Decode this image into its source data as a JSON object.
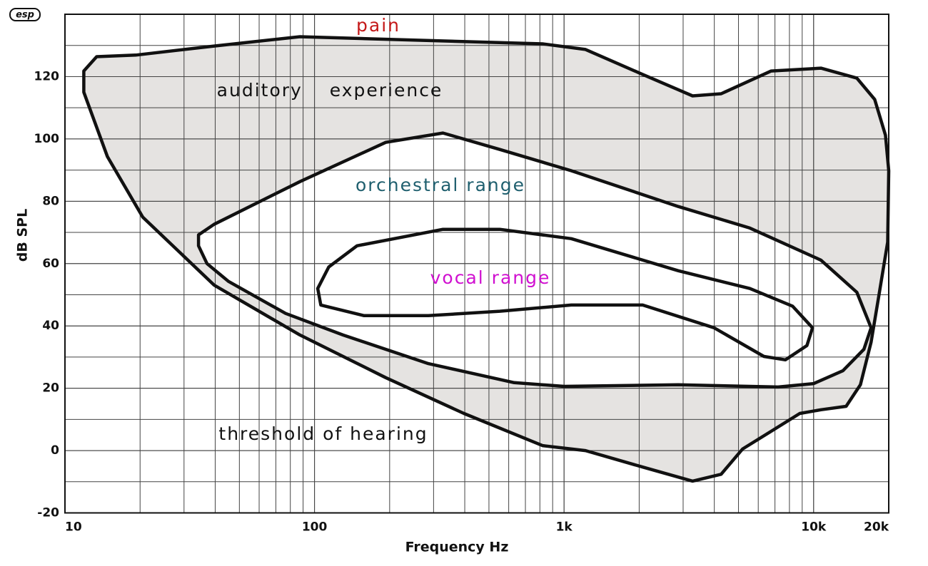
{
  "logo": "esp",
  "chart_data": {
    "type": "region",
    "x_label": "Frequency Hz",
    "y_label": "dB SPL",
    "log_x": true,
    "grid": true,
    "xlim": [
      10,
      20000
    ],
    "ylim": [
      -20,
      140
    ],
    "xticks": [
      10,
      100,
      {
        "value": 1000,
        "label": "1k"
      },
      {
        "value": 10000,
        "label": "10k"
      },
      {
        "value": 20000,
        "label": "20k"
      }
    ],
    "yticks": [
      -20,
      0,
      20,
      40,
      60,
      80,
      100,
      120
    ],
    "series": [
      {
        "name": "auditory experience",
        "color": "#111111",
        "fill": "#e5e3e1",
        "x": [
          11.9,
          13.4,
          19.2,
          39.6,
          87.4,
          169,
          820,
          1219,
          2065,
          3273,
          4260,
          6760,
          10700,
          14900,
          17570,
          19400,
          20000,
          19800,
          18150,
          17000,
          15400,
          13500,
          10700,
          8800,
          6760,
          5190,
          4260,
          3273,
          2065,
          1219,
          820,
          397,
          193,
          87.4,
          39.6,
          20.5,
          14.8,
          11.9
        ],
        "values": [
          121.8,
          126.4,
          126.9,
          129.8,
          132.8,
          132.1,
          130.5,
          128.7,
          120.7,
          113.8,
          114.5,
          121.8,
          122.7,
          119.5,
          112.7,
          101.2,
          89.8,
          66.9,
          48.5,
          34.8,
          21.1,
          14.2,
          13.1,
          11.9,
          6.2,
          0.5,
          -7.6,
          -9.8,
          -5.3,
          0,
          1.6,
          11.9,
          23.4,
          37.1,
          53.1,
          74.9,
          94.3,
          115
        ]
      },
      {
        "name": "orchestral range",
        "color": "#111111",
        "fill": "#ffffff",
        "x": [
          34.3,
          39.6,
          87.4,
          193,
          327,
          553,
          1069,
          2870,
          5550,
          10700,
          14900,
          17000,
          15900,
          13100,
          10000,
          7210,
          2870,
          1000,
          631,
          286,
          130,
          76.6,
          45.2,
          37.1,
          34.3
        ],
        "values": [
          69.2,
          72.6,
          86.3,
          98.9,
          101.9,
          96.6,
          89.8,
          78.3,
          71.4,
          61.1,
          50.8,
          39.4,
          32.5,
          25.6,
          21.5,
          20.4,
          21.1,
          20.6,
          21.8,
          27.9,
          37.1,
          44.0,
          54.3,
          60.0,
          65.7
        ]
      },
      {
        "name": "vocal range",
        "color": "#111111",
        "fill": "#ffffff",
        "x": [
          114,
          148,
          327,
          553,
          1069,
          2870,
          5550,
          8240,
          9900,
          9400,
          7710,
          6320,
          3990,
          2065,
          1069,
          553,
          286,
          158,
          106,
          103
        ],
        "values": [
          58.9,
          65.7,
          71,
          71,
          68,
          57.7,
          52,
          46.3,
          39.4,
          33.7,
          29.1,
          30.2,
          39.4,
          46.7,
          46.7,
          44.7,
          43.3,
          43.3,
          46.7,
          52
        ]
      }
    ],
    "annotations": [
      {
        "text": "pain",
        "color": "#c41818"
      },
      {
        "text": "threshold of hearing",
        "color": "#111111"
      }
    ]
  }
}
